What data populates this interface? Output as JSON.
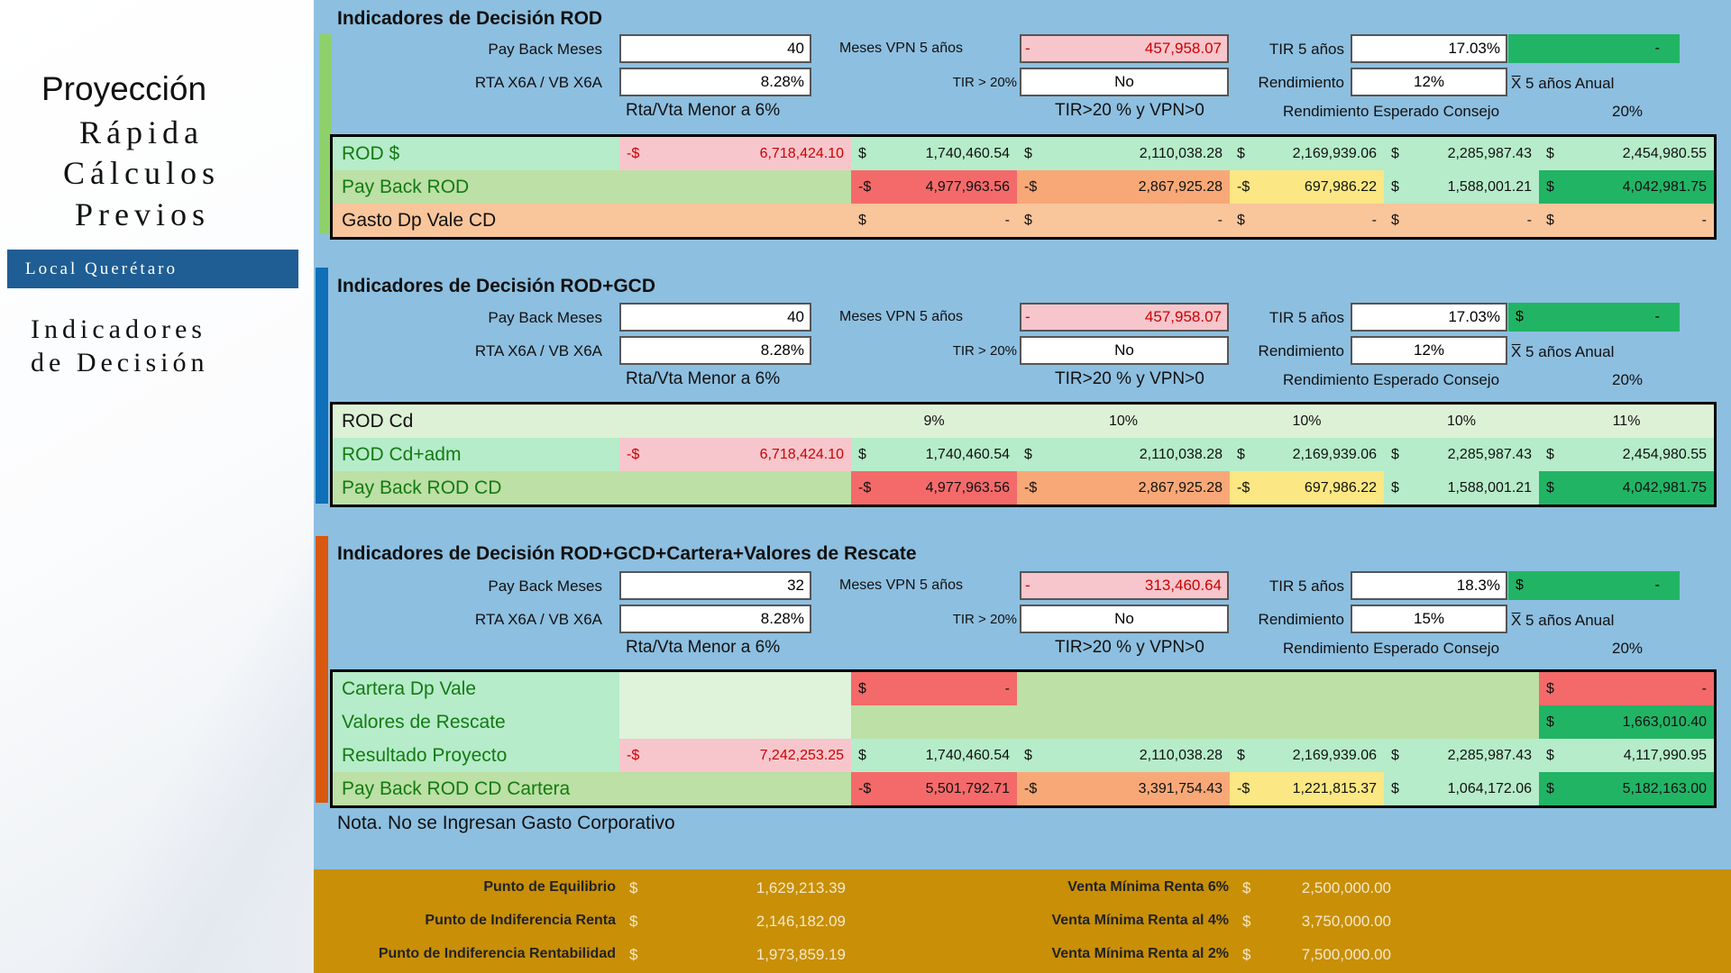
{
  "sidebar": {
    "title1": "Proyección",
    "title2": "Rápida",
    "title3": "Cálculos",
    "title4": "Previos",
    "location": "Local Querétaro",
    "section1": "Indicadores",
    "section2": "de Decisión"
  },
  "colors": {
    "green_dark": "#22b465",
    "green_light": "#b6ecc9",
    "green_mid": "#bce0a5",
    "red_dark": "#f46a6a",
    "pink": "#f7c6cc",
    "orange": "#f8a877",
    "yellow": "#fbe783",
    "peach": "#f9c59b",
    "blue_bar": "#0f6fb9",
    "orange_bar": "#d8590f",
    "green_bar": "#8ed16a",
    "gold": "#c88f07"
  },
  "labels": {
    "payback": "Pay Back Meses",
    "rta": "RTA X6A / VB X6A",
    "meses_vpn": "Meses VPN 5 años",
    "tir20": "TIR > 20%",
    "tir5": "TIR 5 años",
    "rend": "Rendimiento",
    "x5": "X̅ 5 años Anual",
    "rta_menor": "Rta/Vta Menor a 6%",
    "tir_vpn": "TIR>20 % y VPN>0",
    "rend_esp": "Rendimiento Esperado Consejo",
    "rend_esp_val": "20%"
  },
  "s1": {
    "title": "Indicadores de Decisión ROD",
    "payback": "40",
    "rta": "8.28%",
    "vpn_sign": "-",
    "vpn": "457,958.07",
    "tir20": "No",
    "tir5": "17.03%",
    "rend": "12%",
    "x5_val": "-",
    "rows": [
      {
        "label": "ROD $",
        "cells": [
          [
            "-$",
            "6,718,424.10"
          ],
          [
            "$",
            "1,740,460.54"
          ],
          [
            "$",
            "2,110,038.28"
          ],
          [
            "$",
            "2,169,939.06"
          ],
          [
            "$",
            "2,285,987.43"
          ],
          [
            "$",
            "2,454,980.55"
          ]
        ]
      },
      {
        "label": "Pay Back ROD",
        "cells": [
          [
            "",
            ""
          ],
          [
            "-$",
            "4,977,963.56"
          ],
          [
            "-$",
            "2,867,925.28"
          ],
          [
            "-$",
            "697,986.22"
          ],
          [
            "$",
            "1,588,001.21"
          ],
          [
            "$",
            "4,042,981.75"
          ]
        ]
      },
      {
        "label": "Gasto Dp Vale CD",
        "cells": [
          [
            "",
            ""
          ],
          [
            "$",
            "-"
          ],
          [
            "$",
            "-"
          ],
          [
            "$",
            "-"
          ],
          [
            "$",
            "-"
          ],
          [
            "$",
            "-"
          ]
        ]
      }
    ]
  },
  "s2": {
    "title": "Indicadores de Decisión ROD+GCD",
    "payback": "40",
    "rta": "8.28%",
    "vpn_sign": "-",
    "vpn": "457,958.07",
    "tir20": "No",
    "tir5": "17.03%",
    "rend": "12%",
    "x5_cur": "$",
    "x5_val": "-",
    "pct_label": "ROD  Cd",
    "pcts": [
      "9%",
      "10%",
      "10%",
      "10%",
      "11%"
    ],
    "rows": [
      {
        "label": "ROD  Cd+adm",
        "cells": [
          [
            "-$",
            "6,718,424.10"
          ],
          [
            "$",
            "1,740,460.54"
          ],
          [
            "$",
            "2,110,038.28"
          ],
          [
            "$",
            "2,169,939.06"
          ],
          [
            "$",
            "2,285,987.43"
          ],
          [
            "$",
            "2,454,980.55"
          ]
        ]
      },
      {
        "label": "Pay Back ROD CD",
        "cells": [
          [
            "",
            ""
          ],
          [
            "-$",
            "4,977,963.56"
          ],
          [
            "-$",
            "2,867,925.28"
          ],
          [
            "-$",
            "697,986.22"
          ],
          [
            "$",
            "1,588,001.21"
          ],
          [
            "$",
            "4,042,981.75"
          ]
        ]
      }
    ]
  },
  "s3": {
    "title": "Indicadores de Decisión ROD+GCD+Cartera+Valores de Rescate",
    "payback": "32",
    "rta": "8.28%",
    "vpn_sign": "-",
    "vpn": "313,460.64",
    "tir20": "No",
    "tir5": "18.3%",
    "rend": "15%",
    "x5_cur": "$",
    "x5_val": "-",
    "r1": {
      "label": "Cartera Dp Vale",
      "c1": [
        "$",
        "-"
      ],
      "c5": [
        "$",
        "-"
      ]
    },
    "r2": {
      "label": "Valores de Rescate",
      "c5": [
        "$",
        "1,663,010.40"
      ]
    },
    "rows": [
      {
        "label": "Resultado Proyecto",
        "cells": [
          [
            "-$",
            "7,242,253.25"
          ],
          [
            "$",
            "1,740,460.54"
          ],
          [
            "$",
            "2,110,038.28"
          ],
          [
            "$",
            "2,169,939.06"
          ],
          [
            "$",
            "2,285,987.43"
          ],
          [
            "$",
            "4,117,990.95"
          ]
        ]
      },
      {
        "label": "Pay Back ROD CD Cartera",
        "cells": [
          [
            "",
            ""
          ],
          [
            "-$",
            "5,501,792.71"
          ],
          [
            "-$",
            "3,391,754.43"
          ],
          [
            "-$",
            "1,221,815.37"
          ],
          [
            "$",
            "1,064,172.06"
          ],
          [
            "$",
            "5,182,163.00"
          ]
        ]
      }
    ],
    "note": "Nota. No se Ingresan Gasto Corporativo"
  },
  "bottom": {
    "left": [
      [
        "Punto de Equilibrio",
        "$",
        "1,629,213.39"
      ],
      [
        "Punto de Indiferencia Renta",
        "$",
        "2,146,182.09"
      ],
      [
        "Punto de Indiferencia Rentabilidad",
        "$",
        "1,973,859.19"
      ]
    ],
    "right": [
      [
        "Venta Mínima Renta 6%",
        "$",
        "2,500,000.00"
      ],
      [
        "Venta Mínima Renta al 4%",
        "$",
        "3,750,000.00"
      ],
      [
        "Venta Mínima Renta al 2%",
        "$",
        "7,500,000.00"
      ]
    ]
  }
}
